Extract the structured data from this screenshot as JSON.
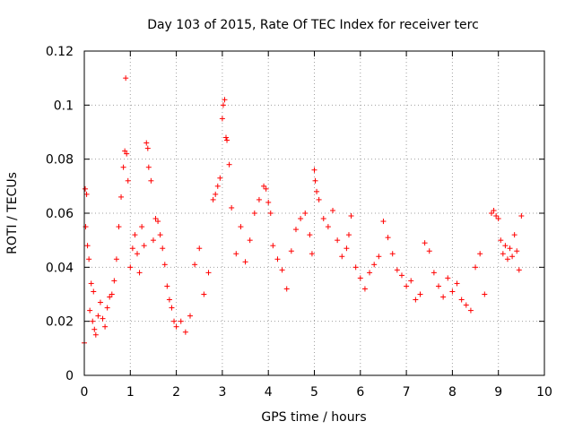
{
  "chart_data": {
    "type": "scatter",
    "title": "Day 103 of 2015, Rate Of TEC Index for receiver terc",
    "xlabel": "GPS time / hours",
    "ylabel": "ROTI / TECUs",
    "xlim": [
      0,
      10
    ],
    "ylim": [
      0,
      0.12
    ],
    "x_ticks": [
      0,
      1,
      2,
      3,
      4,
      5,
      6,
      7,
      8,
      9,
      10
    ],
    "y_ticks": [
      0,
      0.02,
      0.04,
      0.06,
      0.08,
      0.1,
      0.12
    ],
    "x_tick_labels": [
      "0",
      "1",
      "2",
      "3",
      "4",
      "5",
      "6",
      "7",
      "8",
      "9",
      "10"
    ],
    "y_tick_labels": [
      "0",
      "0.02",
      "0.04",
      "0.06",
      "0.08",
      "0.1",
      "0.12"
    ],
    "grid": true,
    "marker": "plus",
    "color": "#ff0000",
    "series": [
      {
        "name": "ROTI",
        "x": [
          0.0,
          0.02,
          0.03,
          0.05,
          0.07,
          0.1,
          0.12,
          0.15,
          0.18,
          0.2,
          0.22,
          0.25,
          0.3,
          0.35,
          0.4,
          0.45,
          0.5,
          0.55,
          0.6,
          0.65,
          0.7,
          0.75,
          0.8,
          0.85,
          0.88,
          0.9,
          0.92,
          0.95,
          1.0,
          1.05,
          1.1,
          1.15,
          1.2,
          1.25,
          1.3,
          1.35,
          1.38,
          1.4,
          1.45,
          1.5,
          1.55,
          1.6,
          1.65,
          1.7,
          1.75,
          1.8,
          1.85,
          1.9,
          1.95,
          2.0,
          2.1,
          2.2,
          2.3,
          2.4,
          2.5,
          2.6,
          2.7,
          2.8,
          2.85,
          2.9,
          2.95,
          3.0,
          3.02,
          3.05,
          3.08,
          3.1,
          3.15,
          3.2,
          3.3,
          3.4,
          3.5,
          3.6,
          3.7,
          3.8,
          3.9,
          3.95,
          4.0,
          4.05,
          4.1,
          4.2,
          4.3,
          4.4,
          4.5,
          4.6,
          4.7,
          4.8,
          4.9,
          4.95,
          5.0,
          5.02,
          5.05,
          5.1,
          5.2,
          5.3,
          5.4,
          5.5,
          5.6,
          5.7,
          5.75,
          5.8,
          5.9,
          6.0,
          6.1,
          6.2,
          6.3,
          6.4,
          6.5,
          6.6,
          6.7,
          6.8,
          6.9,
          7.0,
          7.1,
          7.2,
          7.3,
          7.4,
          7.5,
          7.6,
          7.7,
          7.8,
          7.9,
          8.0,
          8.1,
          8.2,
          8.3,
          8.4,
          8.5,
          8.6,
          8.7,
          8.85,
          8.9,
          8.95,
          9.0,
          9.05,
          9.1,
          9.15,
          9.2,
          9.25,
          9.3,
          9.35,
          9.4,
          9.45,
          9.5
        ],
        "y": [
          0.012,
          0.069,
          0.055,
          0.067,
          0.048,
          0.043,
          0.024,
          0.034,
          0.02,
          0.031,
          0.017,
          0.015,
          0.022,
          0.027,
          0.021,
          0.018,
          0.025,
          0.029,
          0.03,
          0.035,
          0.043,
          0.055,
          0.066,
          0.077,
          0.083,
          0.11,
          0.082,
          0.072,
          0.04,
          0.047,
          0.052,
          0.045,
          0.038,
          0.055,
          0.048,
          0.086,
          0.084,
          0.077,
          0.072,
          0.05,
          0.058,
          0.057,
          0.052,
          0.047,
          0.041,
          0.033,
          0.028,
          0.025,
          0.02,
          0.018,
          0.02,
          0.016,
          0.022,
          0.041,
          0.047,
          0.03,
          0.038,
          0.065,
          0.067,
          0.07,
          0.073,
          0.095,
          0.1,
          0.102,
          0.088,
          0.087,
          0.078,
          0.062,
          0.045,
          0.055,
          0.042,
          0.05,
          0.06,
          0.065,
          0.07,
          0.069,
          0.064,
          0.06,
          0.048,
          0.043,
          0.039,
          0.032,
          0.046,
          0.054,
          0.058,
          0.06,
          0.052,
          0.045,
          0.076,
          0.072,
          0.068,
          0.065,
          0.058,
          0.055,
          0.061,
          0.05,
          0.044,
          0.047,
          0.052,
          0.059,
          0.04,
          0.036,
          0.032,
          0.038,
          0.041,
          0.044,
          0.057,
          0.051,
          0.045,
          0.039,
          0.037,
          0.033,
          0.035,
          0.028,
          0.03,
          0.049,
          0.046,
          0.038,
          0.033,
          0.029,
          0.036,
          0.031,
          0.034,
          0.028,
          0.026,
          0.024,
          0.04,
          0.045,
          0.03,
          0.06,
          0.061,
          0.059,
          0.058,
          0.05,
          0.045,
          0.048,
          0.043,
          0.047,
          0.044,
          0.052,
          0.046,
          0.039,
          0.059
        ]
      }
    ]
  }
}
